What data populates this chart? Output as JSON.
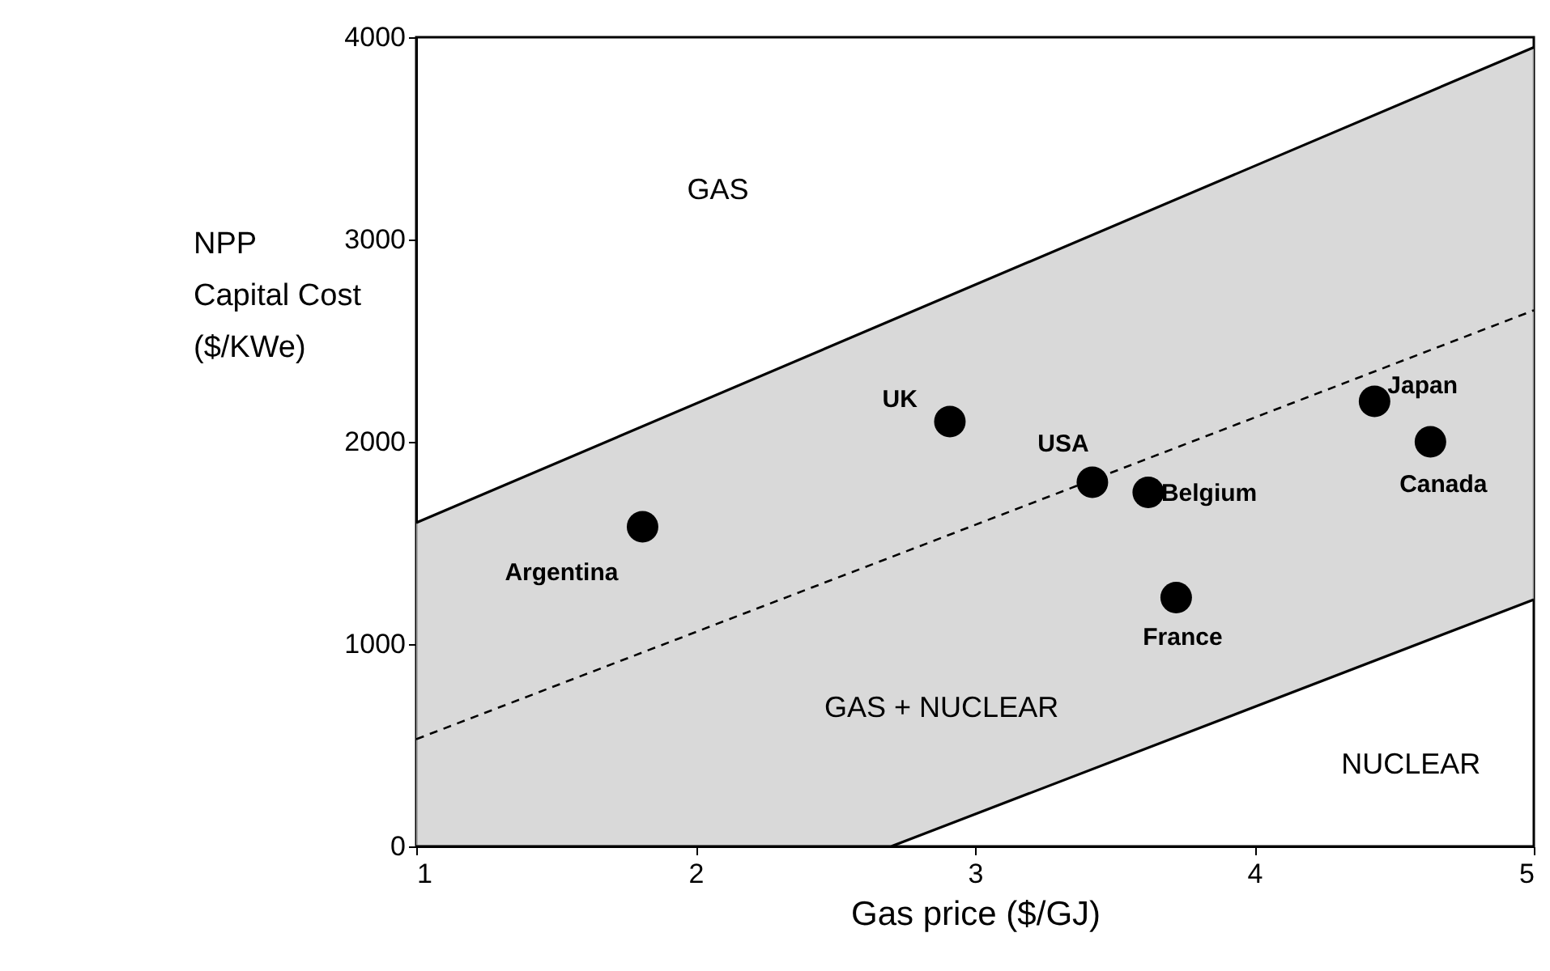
{
  "chart_data": {
    "type": "scatter",
    "xlabel": "Gas price ($/GJ)",
    "ylabel": "NPP\nCapital Cost\n($/KWe)",
    "xlim": [
      1,
      5
    ],
    "xticks": [
      1,
      2,
      3,
      4,
      5
    ],
    "ylim": [
      0,
      4000
    ],
    "yticks": [
      0,
      1000,
      2000,
      3000,
      4000
    ],
    "grid": false,
    "marker": "circle",
    "series": [
      {
        "type": "line",
        "line_style": "dashed",
        "marker": "none",
        "color": "#000000",
        "x": [
          1,
          2.7,
          5
        ],
        "values": [
          530,
          1430,
          2650
        ],
        "lower": [
          0,
          0,
          1220
        ],
        "upper": [
          1600,
          2600,
          3950
        ]
      },
      {
        "type": "line",
        "line_style": "solid",
        "marker": "none",
        "color": "#000000",
        "x": [
          1,
          2.7,
          5
        ],
        "values": [
          1600,
          2600,
          3950
        ]
      },
      {
        "type": "line",
        "line_style": "solid",
        "marker": "none",
        "color": "#000000",
        "x": [
          1,
          2.7,
          5
        ],
        "values": [
          0,
          0,
          1220
        ]
      },
      {
        "name": "Argentina",
        "color": "#000000",
        "x": [
          1.81
        ],
        "values": [
          1580
        ]
      },
      {
        "name": "UK",
        "color": "#000000",
        "x": [
          2.91
        ],
        "values": [
          2100
        ]
      },
      {
        "name": "USA",
        "color": "#000000",
        "x": [
          3.42
        ],
        "values": [
          1800
        ]
      },
      {
        "name": "Belgium",
        "color": "#000000",
        "x": [
          3.62
        ],
        "values": [
          1750
        ]
      },
      {
        "name": "France",
        "color": "#000000",
        "x": [
          3.72
        ],
        "values": [
          1230
        ]
      },
      {
        "name": "Japan",
        "color": "#000000",
        "x": [
          4.43
        ],
        "values": [
          2200
        ]
      },
      {
        "name": "Canada",
        "color": "#000000",
        "x": [
          4.63
        ],
        "values": [
          2000
        ]
      }
    ],
    "annotations": [
      "GAS",
      "GAS + NUCLEAR",
      "NUCLEAR"
    ]
  }
}
